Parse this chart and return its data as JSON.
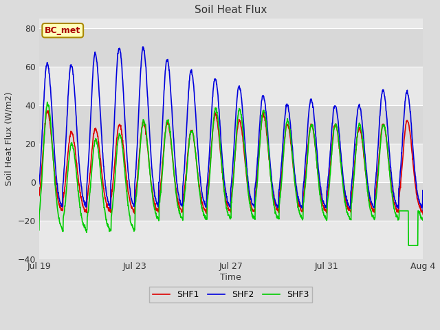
{
  "title": "Soil Heat Flux",
  "xlabel": "Time",
  "ylabel": "Soil Heat Flux (W/m2)",
  "ylim": [
    -40,
    85
  ],
  "yticks": [
    -40,
    -20,
    0,
    20,
    40,
    60,
    80
  ],
  "fig_bg_color": "#dcdcdc",
  "plot_bg_color": "#e8e8e8",
  "legend_labels": [
    "SHF1",
    "SHF2",
    "SHF3"
  ],
  "line_colors": [
    "#dd0000",
    "#0000dd",
    "#00cc00"
  ],
  "line_width": 1.2,
  "annotation_text": "BC_met",
  "annotation_color": "#aa0000",
  "annotation_bg": "#ffffbb",
  "annotation_border": "#aa8800",
  "x_tick_labels": [
    "Jul 19",
    "Jul 23",
    "Jul 27",
    "Jul 31",
    "Aug 4"
  ],
  "x_tick_positions": [
    0,
    4,
    8,
    12,
    16
  ],
  "shf2_amplitudes": [
    62,
    61,
    67,
    70,
    70,
    64,
    58,
    54,
    50,
    45,
    40,
    43,
    40,
    40,
    48,
    47,
    0
  ],
  "shf1_amplitudes": [
    37,
    26,
    28,
    30,
    31,
    31,
    27,
    35,
    32,
    35,
    30,
    30,
    30,
    28,
    30,
    32,
    0
  ],
  "shf3_amplitudes": [
    47,
    26,
    28,
    31,
    32,
    32,
    27,
    38,
    38,
    37,
    32,
    30,
    30,
    30,
    30,
    33,
    0
  ],
  "night_level": -16,
  "night_level_shf3_extra": -4,
  "num_days": 17,
  "points_per_day": 96
}
